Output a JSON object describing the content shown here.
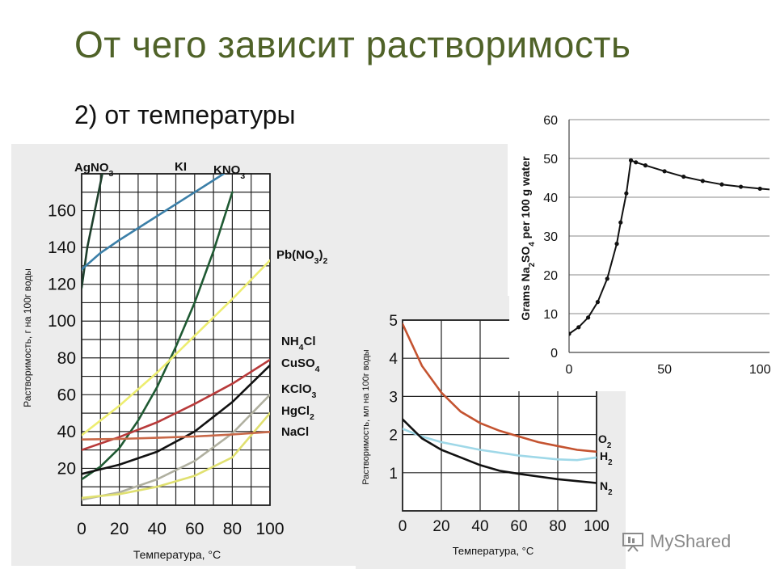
{
  "slide": {
    "title": "От чего зависит растворимость",
    "subtitle": "2) от температуры",
    "watermark": "MyShared"
  },
  "colors": {
    "title": "#4f6228",
    "grid": "#222222",
    "AgNO3": "#1e3f2c",
    "KI": "#3b7fa8",
    "KNO3": "#1f5a33",
    "PbNO3": "#eded70",
    "NH4Cl": "#b83a3a",
    "CuSO4": "#111111",
    "KClO3": "#b0b0a0",
    "HgCl2": "#e0e070",
    "NaCl": "#c86848",
    "O2": "#c45330",
    "H2": "#9fd8e8",
    "N2": "#111111"
  },
  "chart_data": [
    {
      "type": "line",
      "title": "",
      "xlabel": "Температура, °C",
      "ylabel": "Растворимость, г на 100г воды",
      "xlim": [
        0,
        100
      ],
      "ylim": [
        0,
        180
      ],
      "xticks": [
        "0",
        "20",
        "40",
        "60",
        "80",
        "100"
      ],
      "yticks": [
        "20",
        "40",
        "60",
        "80",
        "100",
        "120",
        "140",
        "160"
      ],
      "grid": true,
      "series": [
        {
          "name": "AgNO3",
          "label_parts": [
            [
              "AgNO",
              ""
            ],
            [
              "3",
              "sub"
            ]
          ],
          "points": [
            [
              0,
              118
            ],
            [
              3,
              140
            ],
            [
              7,
              160
            ],
            [
              11,
              180
            ]
          ]
        },
        {
          "name": "KI",
          "label_parts": [
            [
              "KI",
              ""
            ]
          ],
          "points": [
            [
              0,
              128
            ],
            [
              10,
              137
            ],
            [
              20,
              144
            ],
            [
              40,
              157
            ],
            [
              60,
              170
            ],
            [
              80,
              183
            ]
          ]
        },
        {
          "name": "KNO3",
          "label_parts": [
            [
              "KNO",
              ""
            ],
            [
              "3",
              "sub"
            ]
          ],
          "points": [
            [
              0,
              14
            ],
            [
              10,
              21
            ],
            [
              20,
              31
            ],
            [
              30,
              46
            ],
            [
              40,
              64
            ],
            [
              50,
              86
            ],
            [
              60,
              110
            ],
            [
              70,
              138
            ],
            [
              80,
              170
            ]
          ]
        },
        {
          "name": "Pb(NO3)2",
          "label_parts": [
            [
              "Pb(NO",
              ""
            ],
            [
              "3",
              "sub"
            ],
            [
              ")",
              ""
            ],
            [
              "2",
              "sub"
            ]
          ],
          "points": [
            [
              0,
              38
            ],
            [
              20,
              54
            ],
            [
              40,
              72
            ],
            [
              60,
              92
            ],
            [
              80,
              112
            ],
            [
              100,
              133
            ]
          ]
        },
        {
          "name": "NH4Cl",
          "label_parts": [
            [
              "NH",
              ""
            ],
            [
              "4",
              "sub"
            ],
            [
              "Cl",
              ""
            ]
          ],
          "points": [
            [
              0,
              30
            ],
            [
              20,
              37
            ],
            [
              40,
              45
            ],
            [
              60,
              55
            ],
            [
              80,
              66
            ],
            [
              100,
              79
            ]
          ]
        },
        {
          "name": "CuSO4",
          "label_parts": [
            [
              "CuSO",
              ""
            ],
            [
              "4",
              "sub"
            ]
          ],
          "points": [
            [
              0,
              17
            ],
            [
              20,
              22
            ],
            [
              40,
              29
            ],
            [
              60,
              40
            ],
            [
              80,
              56
            ],
            [
              100,
              76
            ]
          ]
        },
        {
          "name": "KClO3",
          "label_parts": [
            [
              "KClO",
              ""
            ],
            [
              "3",
              "sub"
            ]
          ],
          "points": [
            [
              0,
              3
            ],
            [
              20,
              7
            ],
            [
              40,
              14
            ],
            [
              60,
              24
            ],
            [
              80,
              39
            ],
            [
              100,
              60
            ]
          ]
        },
        {
          "name": "HgCl2",
          "label_parts": [
            [
              "HgCl",
              ""
            ],
            [
              "2",
              "sub"
            ]
          ],
          "points": [
            [
              0,
              4
            ],
            [
              20,
              6
            ],
            [
              40,
              10
            ],
            [
              60,
              16
            ],
            [
              80,
              26
            ],
            [
              100,
              50
            ]
          ]
        },
        {
          "name": "NaCl",
          "label_parts": [
            [
              "NaCl",
              ""
            ]
          ],
          "points": [
            [
              0,
              35.7
            ],
            [
              20,
              36
            ],
            [
              40,
              36.6
            ],
            [
              60,
              37.3
            ],
            [
              80,
              38.4
            ],
            [
              100,
              39.8
            ]
          ]
        }
      ]
    },
    {
      "type": "line",
      "title": "",
      "xlabel": "Температура, °C",
      "ylabel": "Растворимость, мл на 100г воды",
      "xlim": [
        0,
        100
      ],
      "ylim": [
        0,
        5
      ],
      "xticks": [
        "0",
        "20",
        "40",
        "60",
        "80",
        "100"
      ],
      "yticks": [
        "1",
        "2",
        "3",
        "4",
        "5"
      ],
      "grid": true,
      "series": [
        {
          "name": "O2",
          "label_parts": [
            [
              "O",
              ""
            ],
            [
              "2",
              "sub"
            ]
          ],
          "points": [
            [
              0,
              4.9
            ],
            [
              10,
              3.8
            ],
            [
              20,
              3.1
            ],
            [
              30,
              2.6
            ],
            [
              40,
              2.3
            ],
            [
              50,
              2.1
            ],
            [
              60,
              1.95
            ],
            [
              70,
              1.8
            ],
            [
              80,
              1.7
            ],
            [
              90,
              1.6
            ],
            [
              100,
              1.55
            ]
          ]
        },
        {
          "name": "H2",
          "label_parts": [
            [
              "H",
              ""
            ],
            [
              "2",
              "sub"
            ]
          ],
          "points": [
            [
              0,
              2.15
            ],
            [
              10,
              1.95
            ],
            [
              20,
              1.8
            ],
            [
              40,
              1.6
            ],
            [
              60,
              1.45
            ],
            [
              80,
              1.35
            ],
            [
              90,
              1.33
            ],
            [
              100,
              1.4
            ]
          ]
        },
        {
          "name": "N2",
          "label_parts": [
            [
              "N",
              ""
            ],
            [
              "2",
              "sub"
            ]
          ],
          "points": [
            [
              0,
              2.4
            ],
            [
              10,
              1.9
            ],
            [
              20,
              1.6
            ],
            [
              30,
              1.4
            ],
            [
              40,
              1.2
            ],
            [
              50,
              1.05
            ],
            [
              60,
              0.97
            ],
            [
              70,
              0.9
            ],
            [
              80,
              0.83
            ],
            [
              90,
              0.78
            ],
            [
              100,
              0.73
            ]
          ]
        }
      ]
    },
    {
      "type": "line",
      "title": "",
      "xlabel": "",
      "ylabel": "Grams Na2SO4 per 100 g water",
      "ylabel_parts": [
        [
          "Grams Na",
          ""
        ],
        [
          "2",
          "sub"
        ],
        [
          "SO",
          ""
        ],
        [
          "4",
          "sub"
        ],
        [
          " per 100 g water",
          ""
        ]
      ],
      "xlim": [
        0,
        105
      ],
      "ylim": [
        0,
        60
      ],
      "xticks": [
        "0",
        "50",
        "100"
      ],
      "yticks": [
        "0",
        "10",
        "20",
        "30",
        "40",
        "50",
        "60"
      ],
      "grid": true,
      "series": [
        {
          "name": "Na2SO4",
          "points": [
            [
              0,
              4.8
            ],
            [
              5,
              6.5
            ],
            [
              10,
              9
            ],
            [
              15,
              13
            ],
            [
              20,
              19
            ],
            [
              25,
              28
            ],
            [
              27,
              33.5
            ],
            [
              30,
              41
            ],
            [
              32.4,
              49.5
            ],
            [
              35,
              49
            ],
            [
              40,
              48.2
            ],
            [
              50,
              46.7
            ],
            [
              60,
              45.3
            ],
            [
              70,
              44.2
            ],
            [
              80,
              43.3
            ],
            [
              90,
              42.7
            ],
            [
              100,
              42.2
            ],
            [
              110,
              41.8
            ]
          ]
        }
      ]
    }
  ]
}
